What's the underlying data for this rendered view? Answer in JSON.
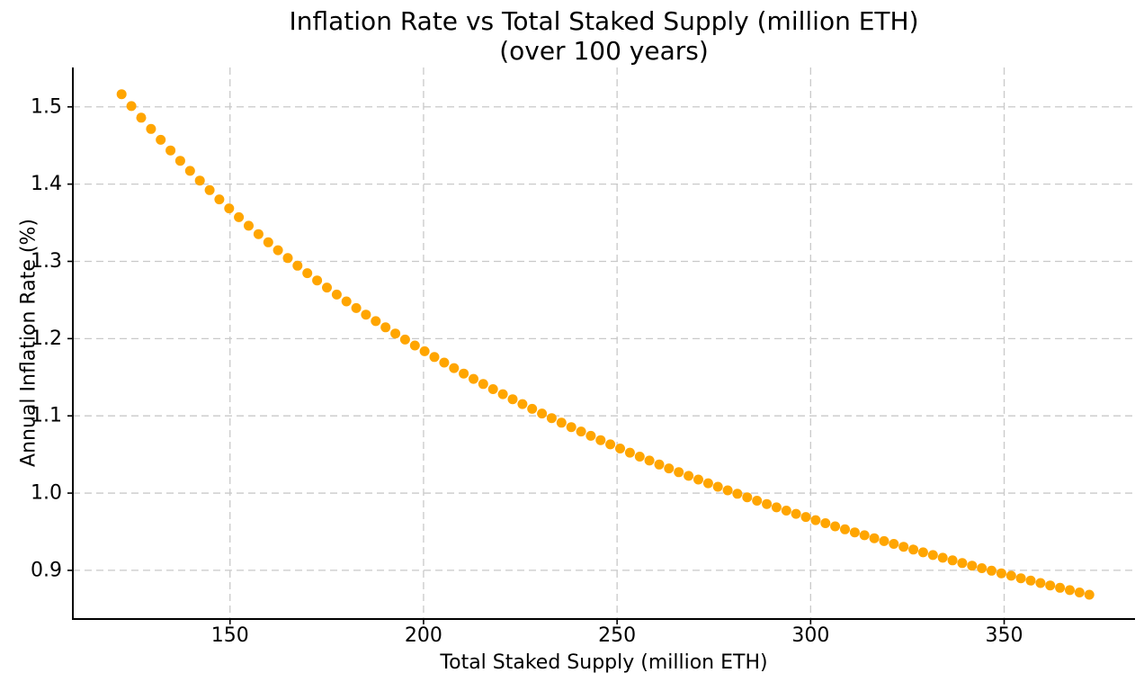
{
  "chart_data": {
    "type": "scatter",
    "title": "Inflation Rate vs Total Staked Supply (million ETH)",
    "subtitle": "(over 100 years)",
    "xlabel": "Total Staked Supply (million ETH)",
    "ylabel": "Annual Inflation Rate (%)",
    "x_ticks": [
      150,
      200,
      250,
      300,
      350
    ],
    "x_tick_labels": [
      "150",
      "200",
      "250",
      "300",
      "350"
    ],
    "y_ticks": [
      0.9,
      1.0,
      1.1,
      1.2,
      1.3,
      1.4,
      1.5
    ],
    "y_tick_labels": [
      "0.9",
      "1.0",
      "1.1",
      "1.2",
      "1.3",
      "1.4",
      "1.5"
    ],
    "xlim": [
      109.4,
      383.8
    ],
    "ylim": [
      0.837,
      1.551
    ],
    "grid": true,
    "grid_style": "dashed",
    "legend": "none",
    "marker_color": "#FFA500",
    "grid_color": "#c9c9c9",
    "spine_color": "#000000",
    "text_color": "#000000",
    "n_points": 100,
    "x": [
      122.0,
      124.53,
      127.05,
      129.58,
      132.1,
      134.63,
      137.15,
      139.68,
      142.2,
      144.73,
      147.25,
      149.78,
      152.3,
      154.83,
      157.35,
      159.88,
      162.4,
      164.93,
      167.45,
      169.98,
      172.51,
      175.03,
      177.56,
      180.08,
      182.61,
      185.13,
      187.66,
      190.18,
      192.71,
      195.23,
      197.76,
      200.28,
      202.81,
      205.33,
      207.86,
      210.38,
      212.91,
      215.43,
      217.96,
      220.48,
      223.01,
      225.54,
      228.06,
      230.59,
      233.11,
      235.64,
      238.16,
      240.69,
      243.21,
      245.74,
      248.26,
      250.79,
      253.31,
      255.84,
      258.36,
      260.89,
      263.41,
      265.94,
      268.46,
      270.99,
      273.52,
      276.04,
      278.57,
      281.09,
      283.62,
      286.14,
      288.67,
      291.19,
      293.72,
      296.24,
      298.77,
      301.29,
      303.82,
      306.34,
      308.87,
      311.39,
      313.92,
      316.44,
      318.97,
      321.49,
      324.02,
      326.55,
      329.07,
      331.6,
      334.12,
      336.65,
      339.17,
      341.7,
      344.22,
      346.75,
      349.27,
      351.8,
      354.32,
      356.85,
      359.37,
      361.9,
      364.42,
      366.95,
      369.47,
      372.0
    ],
    "y": [
      1.5164,
      1.501,
      1.486,
      1.4714,
      1.4573,
      1.4436,
      1.4302,
      1.4172,
      1.4046,
      1.3923,
      1.3803,
      1.3686,
      1.3572,
      1.3461,
      1.3353,
      1.3247,
      1.3144,
      1.3043,
      1.2944,
      1.2847,
      1.2753,
      1.2661,
      1.257,
      1.2482,
      1.2395,
      1.231,
      1.2227,
      1.2146,
      1.2066,
      1.1988,
      1.1911,
      1.1836,
      1.1762,
      1.1689,
      1.1618,
      1.1548,
      1.1479,
      1.1412,
      1.1346,
      1.1281,
      1.1216,
      1.1153,
      1.1091,
      1.103,
      1.0971,
      1.0912,
      1.0854,
      1.0797,
      1.0741,
      1.0685,
      1.0631,
      1.0577,
      1.0524,
      1.0472,
      1.0421,
      1.037,
      1.032,
      1.0271,
      1.0223,
      1.0175,
      1.0128,
      1.0082,
      1.0036,
      0.9991,
      0.9946,
      0.9902,
      0.9859,
      0.9816,
      0.9774,
      0.9732,
      0.9691,
      0.965,
      0.961,
      0.957,
      0.9531,
      0.9492,
      0.9454,
      0.9416,
      0.9379,
      0.9342,
      0.9305,
      0.9269,
      0.9233,
      0.9198,
      0.9163,
      0.9129,
      0.9095,
      0.9061,
      0.9028,
      0.8995,
      0.8962,
      0.893,
      0.8898,
      0.8867,
      0.8836,
      0.8805,
      0.8774,
      0.8744,
      0.8714,
      0.8684
    ]
  }
}
